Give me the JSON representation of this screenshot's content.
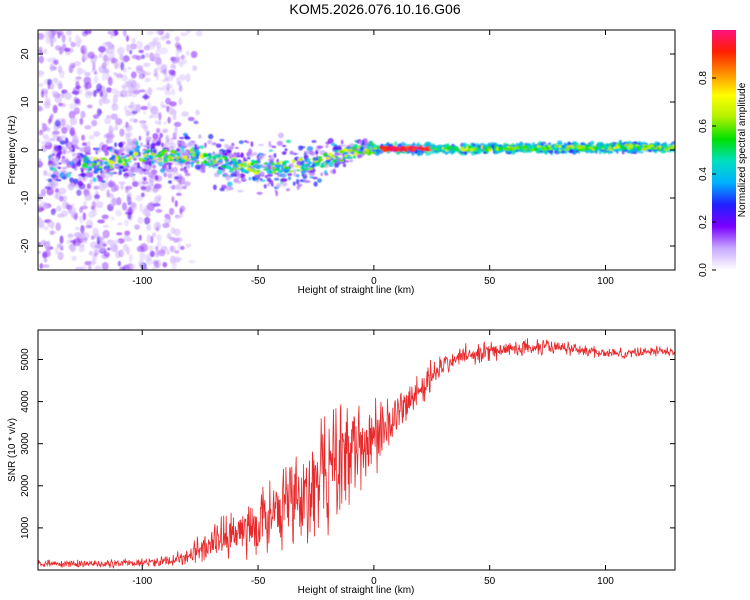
{
  "title": "KOM5.2026.076.10.16.G06",
  "colors": {
    "snr_line": "#e8282a",
    "colormap": [
      "#ffffff",
      "#c8a8ff",
      "#7a00ff",
      "#2020ff",
      "#00b0ff",
      "#00e0c0",
      "#00e000",
      "#b0f000",
      "#ffff00",
      "#ff9000",
      "#ff2000",
      "#ff1080"
    ]
  },
  "chart_data": [
    {
      "type": "heatmap",
      "name": "spectrogram",
      "title": "KOM5.2026.076.10.16.G06",
      "xlabel": "Height of straight line (km)",
      "ylabel": "Frequency (Hz)",
      "xlim": [
        -145,
        130
      ],
      "ylim": [
        -25,
        25
      ],
      "xticks": [
        -100,
        -50,
        0,
        50,
        100
      ],
      "yticks": [
        -20,
        -10,
        0,
        10,
        20
      ],
      "colorbar": {
        "label": "Normalized spectral amplitude",
        "range": [
          0,
          1
        ],
        "ticks": [
          0.0,
          0.2,
          0.4,
          0.6,
          0.8
        ]
      },
      "ridge": {
        "description": "dominant spectral line vs height",
        "x": [
          -140,
          -120,
          -100,
          -80,
          -60,
          -45,
          -30,
          -20,
          -10,
          -5,
          0,
          10,
          25,
          50,
          75,
          100,
          130
        ],
        "freq": [
          -2,
          -3,
          -1.5,
          -1,
          -3,
          -4,
          -3,
          -2,
          -0.5,
          0.5,
          0.3,
          0.3,
          0.3,
          0.3,
          0.4,
          0.5,
          0.6
        ]
      }
    },
    {
      "type": "line",
      "name": "snr",
      "xlabel": "Height of straight line (km)",
      "ylabel": "SNR (10 * v/v)",
      "xlim": [
        -145,
        130
      ],
      "ylim": [
        0,
        5700
      ],
      "xticks": [
        -100,
        -50,
        0,
        50,
        100
      ],
      "yticks": [
        1000,
        2000,
        3000,
        4000,
        5000
      ],
      "trend": {
        "x": [
          -145,
          -120,
          -100,
          -90,
          -80,
          -70,
          -60,
          -50,
          -40,
          -30,
          -20,
          -15,
          -10,
          -5,
          0,
          5,
          10,
          15,
          20,
          25,
          30,
          35,
          40,
          50,
          60,
          70,
          80,
          90,
          100,
          110,
          120,
          130
        ],
        "y": [
          150,
          140,
          170,
          220,
          350,
          600,
          900,
          1100,
          1400,
          1800,
          2300,
          2500,
          2800,
          3000,
          3200,
          3400,
          3700,
          4000,
          4300,
          4600,
          4850,
          5000,
          5100,
          5200,
          5250,
          5300,
          5280,
          5220,
          5150,
          5150,
          5200,
          5200
        ]
      },
      "noise_amplitude": {
        "x": [
          -145,
          -100,
          -90,
          -80,
          -70,
          -60,
          -50,
          -40,
          -30,
          -20,
          -10,
          0,
          10,
          20,
          30,
          40,
          60,
          80,
          100,
          130
        ],
        "y": [
          100,
          120,
          200,
          350,
          550,
          700,
          1000,
          1300,
          1600,
          1700,
          1500,
          1100,
          700,
          500,
          350,
          300,
          250,
          200,
          150,
          150
        ]
      }
    }
  ]
}
